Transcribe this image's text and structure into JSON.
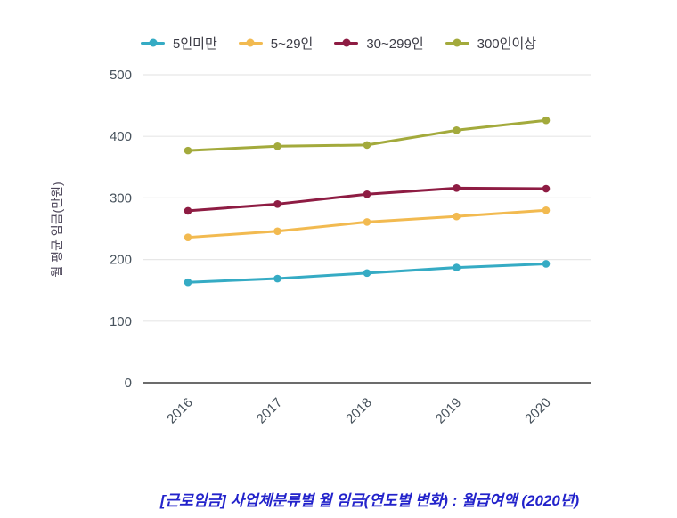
{
  "title": {
    "text": "[근로임금] 사업체분류별 월 임금(연도별 변화) : 월급여액 (2020년)",
    "color": "#2323cb"
  },
  "chart_data": {
    "type": "line",
    "categories": [
      "2016",
      "2017",
      "2018",
      "2019",
      "2020"
    ],
    "series": [
      {
        "name": "5인미만",
        "color": "#35abc4",
        "values": [
          163,
          169,
          178,
          187,
          193
        ]
      },
      {
        "name": "5~29인",
        "color": "#f2ba50",
        "values": [
          236,
          246,
          261,
          270,
          280
        ]
      },
      {
        "name": "30~299인",
        "color": "#8e1c43",
        "values": [
          279,
          290,
          306,
          316,
          315
        ]
      },
      {
        "name": "300인이상",
        "color": "#a3aa3c",
        "values": [
          377,
          384,
          386,
          410,
          426
        ]
      }
    ],
    "ylabel": "월 평균 임금(만원)",
    "xlabel": "",
    "ylim": [
      0,
      500
    ],
    "ytick_step": 100,
    "yticks": [
      "0",
      "100",
      "200",
      "300",
      "400",
      "500"
    ],
    "grid": true,
    "legend_position": "top",
    "marker": "circle",
    "styles": {
      "gridline_color": "#e7e7e7",
      "axis_color": "#3b3b3b",
      "tick_label_color": "#47525c",
      "ylabel_color": "#4b4458",
      "legend_text_color": "#3c3c46",
      "background": "#ffffff"
    }
  }
}
